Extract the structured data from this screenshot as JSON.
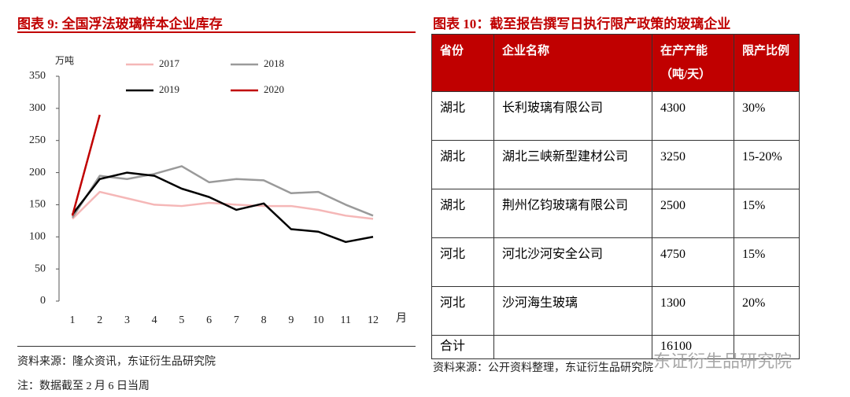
{
  "chart_data": {
    "type": "line",
    "title": "图表 9:   全国浮法玻璃样本企业库存",
    "y_label": "万吨",
    "x_label": "月",
    "categories": [
      "1",
      "2",
      "3",
      "4",
      "5",
      "6",
      "7",
      "8",
      "9",
      "10",
      "11",
      "12"
    ],
    "ylim": [
      0,
      350
    ],
    "yticks": [
      0,
      50,
      100,
      150,
      200,
      250,
      300,
      350
    ],
    "series": [
      {
        "name": "2017",
        "color": "#f5b7b7",
        "values": [
          128,
          170,
          160,
          150,
          148,
          153,
          150,
          148,
          148,
          142,
          133,
          128
        ]
      },
      {
        "name": "2018",
        "color": "#9a9a9a",
        "values": [
          130,
          195,
          190,
          198,
          210,
          185,
          190,
          188,
          168,
          170,
          150,
          133
        ]
      },
      {
        "name": "2019",
        "color": "#000000",
        "values": [
          135,
          190,
          200,
          195,
          175,
          162,
          142,
          152,
          112,
          108,
          92,
          100
        ]
      },
      {
        "name": "2020",
        "color": "#c00000",
        "values": [
          133,
          290,
          null,
          null,
          null,
          null,
          null,
          null,
          null,
          null,
          null,
          null
        ]
      }
    ],
    "source": "资料来源：隆众资讯，东证衍生品研究院",
    "note": "注：数据截至 2 月 6 日当周"
  },
  "table": {
    "title": "图表 10：截至报告撰写日执行限产政策的玻璃企业",
    "header": [
      "省份",
      "企业名称",
      "在产产能（吨/天）",
      "限产比例"
    ],
    "rows": [
      [
        "湖北",
        "长利玻璃有限公司",
        "4300",
        "30%"
      ],
      [
        "湖北",
        "湖北三峡新型建材公司",
        "3250",
        "15-20%"
      ],
      [
        "湖北",
        "荆州亿钧玻璃有限公司",
        "2500",
        "15%"
      ],
      [
        "河北",
        "河北沙河安全公司",
        "4750",
        "15%"
      ],
      [
        "河北",
        "沙河海生玻璃",
        "1300",
        "20%"
      ]
    ],
    "total": {
      "label": "合计",
      "capacity": "16100"
    },
    "source": "资料来源：公开资料整理，东证衍生品研究院"
  },
  "watermark": "东证衍生品研究院"
}
